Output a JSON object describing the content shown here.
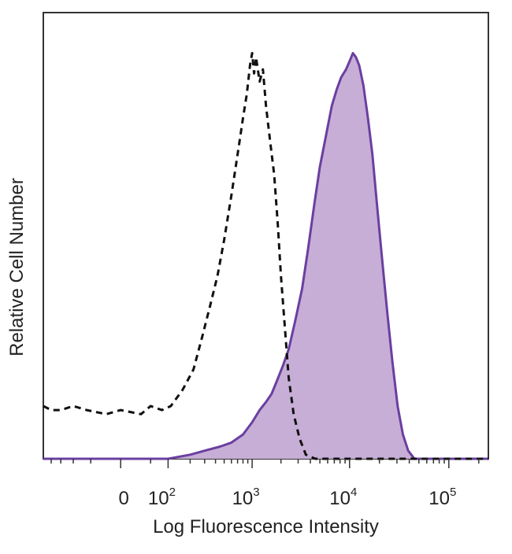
{
  "chart_data": {
    "type": "area",
    "title": "",
    "xlabel": "Log Fluorescence Intensity",
    "ylabel": "Relative Cell Number",
    "x_scale": "biexponential",
    "xlim": [
      -250,
      250000
    ],
    "ylim": [
      0,
      1.1
    ],
    "grid": false,
    "legend": "none",
    "x_ticks": [
      {
        "value": 0,
        "base": "0",
        "exp": ""
      },
      {
        "value": 100,
        "base": "10",
        "exp": "2"
      },
      {
        "value": 1000,
        "base": "10",
        "exp": "3"
      },
      {
        "value": 10000,
        "base": "10",
        "exp": "4"
      },
      {
        "value": 100000,
        "base": "10",
        "exp": "5"
      }
    ],
    "series": [
      {
        "style": "dashed",
        "fill": false,
        "color": "#111111",
        "points": [
          [
            -250,
            0.13
          ],
          [
            -200,
            0.12
          ],
          [
            -150,
            0.12
          ],
          [
            -100,
            0.13
          ],
          [
            -60,
            0.12
          ],
          [
            -20,
            0.11
          ],
          [
            0,
            0.12
          ],
          [
            30,
            0.11
          ],
          [
            50,
            0.13
          ],
          [
            80,
            0.12
          ],
          [
            110,
            0.13
          ],
          [
            160,
            0.17
          ],
          [
            220,
            0.22
          ],
          [
            280,
            0.3
          ],
          [
            340,
            0.37
          ],
          [
            420,
            0.45
          ],
          [
            500,
            0.54
          ],
          [
            600,
            0.65
          ],
          [
            700,
            0.75
          ],
          [
            800,
            0.84
          ],
          [
            880,
            0.9
          ],
          [
            950,
            0.97
          ],
          [
            1000,
            1.0
          ],
          [
            1050,
            0.95
          ],
          [
            1100,
            0.99
          ],
          [
            1200,
            0.93
          ],
          [
            1300,
            0.96
          ],
          [
            1400,
            0.87
          ],
          [
            1550,
            0.78
          ],
          [
            1700,
            0.7
          ],
          [
            1850,
            0.58
          ],
          [
            2000,
            0.45
          ],
          [
            2200,
            0.32
          ],
          [
            2400,
            0.2
          ],
          [
            2700,
            0.11
          ],
          [
            3100,
            0.05
          ],
          [
            3600,
            0.01
          ],
          [
            4500,
            0.0
          ],
          [
            10000,
            0.0
          ],
          [
            100000,
            0.0
          ],
          [
            250000,
            0.0
          ]
        ]
      },
      {
        "style": "solid",
        "fill": true,
        "color": "#6a3fa0",
        "fill_color": "#c7aed6",
        "points": [
          [
            -250,
            0.0
          ],
          [
            0,
            0.0
          ],
          [
            100,
            0.0
          ],
          [
            200,
            0.01
          ],
          [
            300,
            0.02
          ],
          [
            450,
            0.03
          ],
          [
            600,
            0.04
          ],
          [
            800,
            0.06
          ],
          [
            1000,
            0.09
          ],
          [
            1200,
            0.12
          ],
          [
            1400,
            0.14
          ],
          [
            1600,
            0.16
          ],
          [
            1800,
            0.19
          ],
          [
            2100,
            0.23
          ],
          [
            2400,
            0.27
          ],
          [
            2800,
            0.34
          ],
          [
            3300,
            0.42
          ],
          [
            3800,
            0.52
          ],
          [
            4400,
            0.63
          ],
          [
            5000,
            0.72
          ],
          [
            5800,
            0.8
          ],
          [
            6600,
            0.87
          ],
          [
            7400,
            0.91
          ],
          [
            8200,
            0.94
          ],
          [
            9200,
            0.96
          ],
          [
            10000,
            0.98
          ],
          [
            10800,
            1.0
          ],
          [
            11600,
            0.99
          ],
          [
            12500,
            0.97
          ],
          [
            13800,
            0.92
          ],
          [
            15300,
            0.84
          ],
          [
            17000,
            0.75
          ],
          [
            19000,
            0.62
          ],
          [
            21500,
            0.48
          ],
          [
            24000,
            0.36
          ],
          [
            27000,
            0.24
          ],
          [
            30500,
            0.13
          ],
          [
            34500,
            0.06
          ],
          [
            39000,
            0.02
          ],
          [
            45000,
            0.0
          ],
          [
            100000,
            0.0
          ],
          [
            250000,
            0.0
          ]
        ]
      }
    ]
  }
}
